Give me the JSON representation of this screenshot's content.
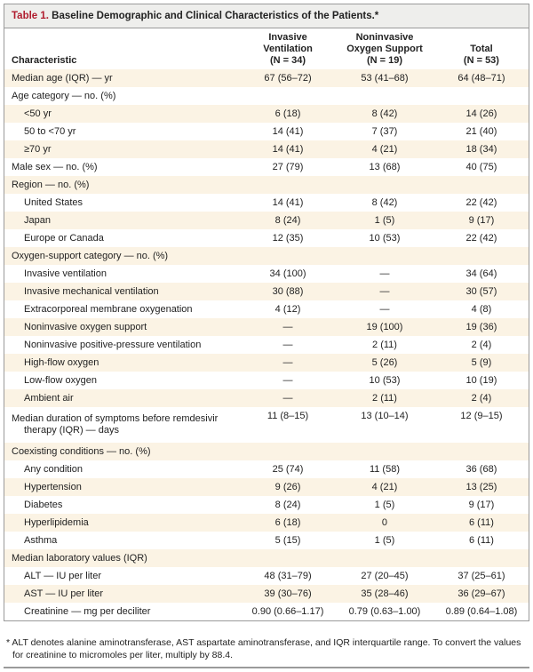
{
  "title": {
    "number": "Table 1.",
    "text": "Baseline Demographic and Clinical Characteristics of the Patients.*"
  },
  "columns": [
    "Characteristic",
    [
      "Invasive",
      "Ventilation",
      "(N = 34)"
    ],
    [
      "Noninvasive",
      "Oxygen Support",
      "(N = 19)"
    ],
    [
      "Total",
      "(N = 53)"
    ]
  ],
  "rows": [
    {
      "label": "Median age (IQR) — yr",
      "v": [
        "67 (56–72)",
        "53 (41–68)",
        "64 (48–71)"
      ]
    },
    {
      "label": "Age category — no. (%)",
      "v": [
        "",
        "",
        ""
      ]
    },
    {
      "label": "<50 yr",
      "indent": true,
      "v": [
        "6 (18)",
        "8 (42)",
        "14 (26)"
      ]
    },
    {
      "label": "50 to <70 yr",
      "indent": true,
      "v": [
        "14 (41)",
        "7 (37)",
        "21 (40)"
      ]
    },
    {
      "label": "≥70 yr",
      "indent": true,
      "v": [
        "14 (41)",
        "4 (21)",
        "18 (34)"
      ]
    },
    {
      "label": "Male sex — no. (%)",
      "v": [
        "27 (79)",
        "13 (68)",
        "40 (75)"
      ]
    },
    {
      "label": "Region — no. (%)",
      "v": [
        "",
        "",
        ""
      ]
    },
    {
      "label": "United States",
      "indent": true,
      "v": [
        "14 (41)",
        "8 (42)",
        "22 (42)"
      ]
    },
    {
      "label": "Japan",
      "indent": true,
      "v": [
        "8 (24)",
        "1 (5)",
        "9 (17)"
      ]
    },
    {
      "label": "Europe or Canada",
      "indent": true,
      "v": [
        "12 (35)",
        "10 (53)",
        "22 (42)"
      ]
    },
    {
      "label": "Oxygen-support category — no. (%)",
      "v": [
        "",
        "",
        ""
      ]
    },
    {
      "label": "Invasive ventilation",
      "indent": true,
      "v": [
        "34 (100)",
        "—",
        "34 (64)"
      ]
    },
    {
      "label": "Invasive mechanical ventilation",
      "indent": true,
      "v": [
        "30 (88)",
        "—",
        "30 (57)"
      ]
    },
    {
      "label": "Extracorporeal membrane oxygenation",
      "indent": true,
      "v": [
        "4 (12)",
        "—",
        "4 (8)"
      ]
    },
    {
      "label": "Noninvasive oxygen support",
      "indent": true,
      "v": [
        "—",
        "19 (100)",
        "19 (36)"
      ]
    },
    {
      "label": "Noninvasive positive-pressure ventilation",
      "indent": true,
      "v": [
        "—",
        "2 (11)",
        "2 (4)"
      ]
    },
    {
      "label": "High-flow oxygen",
      "indent": true,
      "v": [
        "—",
        "5 (26)",
        "5 (9)"
      ]
    },
    {
      "label": "Low-flow oxygen",
      "indent": true,
      "v": [
        "—",
        "10 (53)",
        "10 (19)"
      ]
    },
    {
      "label": "Ambient air",
      "indent": true,
      "v": [
        "—",
        "2 (11)",
        "2 (4)"
      ]
    },
    {
      "label": "Median duration of symptoms before remdesivir therapy (IQR) — days",
      "two": true,
      "v": [
        "11 (8–15)",
        "13 (10–14)",
        "12 (9–15)"
      ]
    },
    {
      "label": "Coexisting conditions — no. (%)",
      "v": [
        "",
        "",
        ""
      ]
    },
    {
      "label": "Any condition",
      "indent": true,
      "v": [
        "25 (74)",
        "11 (58)",
        "36 (68)"
      ]
    },
    {
      "label": "Hypertension",
      "indent": true,
      "v": [
        "9 (26)",
        "4 (21)",
        "13 (25)"
      ]
    },
    {
      "label": "Diabetes",
      "indent": true,
      "v": [
        "8 (24)",
        "1 (5)",
        "9 (17)"
      ]
    },
    {
      "label": "Hyperlipidemia",
      "indent": true,
      "v": [
        "6 (18)",
        "0",
        "6 (11)"
      ]
    },
    {
      "label": "Asthma",
      "indent": true,
      "v": [
        "5 (15)",
        "1 (5)",
        "6 (11)"
      ]
    },
    {
      "label": "Median laboratory values (IQR)",
      "v": [
        "",
        "",
        ""
      ]
    },
    {
      "label": "ALT — IU per liter",
      "indent": true,
      "v": [
        "48 (31–79)",
        "27 (20–45)",
        "37 (25–61)"
      ]
    },
    {
      "label": "AST — IU per liter",
      "indent": true,
      "v": [
        "39 (30–76)",
        "35 (28–46)",
        "36 (29–67)"
      ]
    },
    {
      "label": "Creatinine — mg per deciliter",
      "indent": true,
      "v": [
        "0.90 (0.66–1.17)",
        "0.79 (0.63–1.00)",
        "0.89 (0.64–1.08)"
      ]
    }
  ],
  "footnote": "* ALT denotes alanine aminotransferase, AST aspartate aminotransferase, and IQR interquartile range. To convert the values for creatinine to micromoles per liter, multiply by 88.4.",
  "colors": {
    "title_number": "#b01c2e",
    "row_shade": "#fbf3e4",
    "title_bar": "#eeeeec",
    "border": "#9a9a9a"
  }
}
